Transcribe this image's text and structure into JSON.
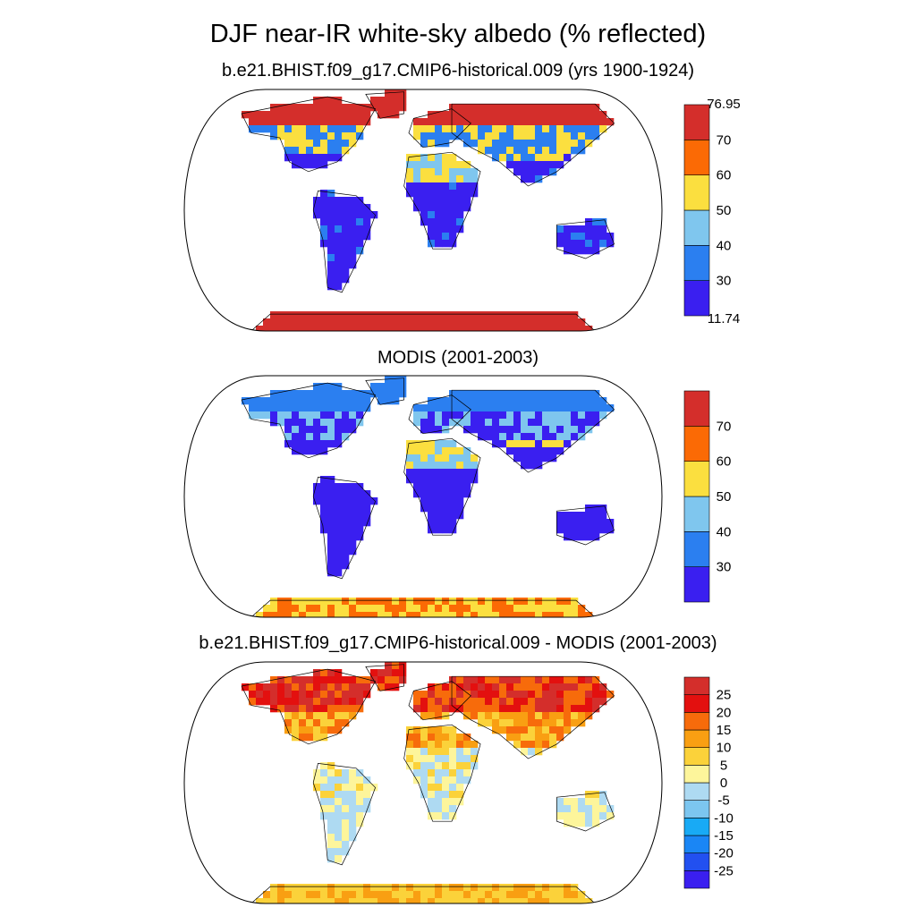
{
  "figure": {
    "title": "DJF near-IR white-sky albedo (% reflected)"
  },
  "panels": [
    {
      "id": "model",
      "title": "b.e21.BHIST.f09_g17.CMIP6-historical.009 (yrs 1900-1924)",
      "colorbar": {
        "min_label": "11.74",
        "max_label": "76.95",
        "tick_labels": [
          "70",
          "60",
          "50",
          "40",
          "30"
        ],
        "colors": [
          "#3a1ff0",
          "#2b7ff0",
          "#7fc6ee",
          "#fbdf3f",
          "#fb6a05",
          "#d42e2b"
        ]
      }
    },
    {
      "id": "obs",
      "title": "MODIS (2001-2003)",
      "colorbar": {
        "tick_labels": [
          "70",
          "60",
          "50",
          "40",
          "30"
        ],
        "colors": [
          "#3a1ff0",
          "#2b7ff0",
          "#7fc6ee",
          "#fbdf3f",
          "#fb6a05",
          "#d42e2b"
        ]
      }
    },
    {
      "id": "diff",
      "title": "b.e21.BHIST.f09_g17.CMIP6-historical.009 - MODIS (2001-2003)",
      "colorbar": {
        "tick_labels": [
          "25",
          "20",
          "15",
          "10",
          "5",
          "0",
          "-5",
          "-10",
          "-15",
          "-20",
          "-25"
        ],
        "colors": [
          "#3a1ff0",
          "#2250f0",
          "#1a86f5",
          "#18aaf5",
          "#7cc6f0",
          "#aedaf2",
          "#fdf59b",
          "#fbd23a",
          "#f99f12",
          "#f76b0b",
          "#e3100f",
          "#d42e2b"
        ]
      }
    }
  ]
}
